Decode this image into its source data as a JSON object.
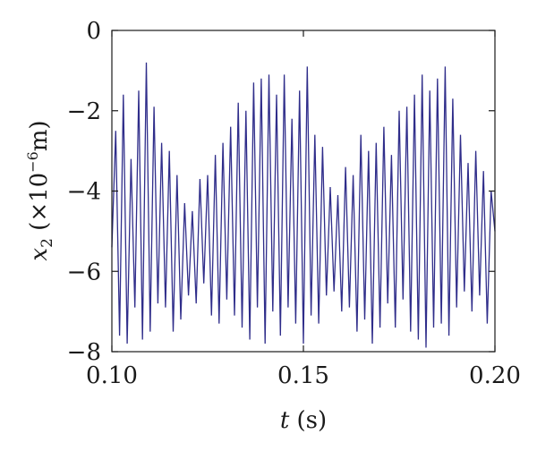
{
  "chart_data": {
    "type": "line",
    "title": "",
    "xlabel": {
      "var": "t",
      "unit": "(s)"
    },
    "ylabel": {
      "var": "x",
      "sub": "2",
      "pre": "(×10",
      "exp": "−6",
      "unit": "m)"
    },
    "xlim": [
      0.1,
      0.2
    ],
    "ylim": [
      -8,
      0
    ],
    "xticks": [
      0.1,
      0.15,
      0.2
    ],
    "xtick_labels": [
      "0.10",
      "0.15",
      "0.20"
    ],
    "yticks": [
      0,
      -2,
      -4,
      -6,
      -8
    ],
    "ytick_labels": [
      "0",
      "−2",
      "−4",
      "−6",
      "−8"
    ],
    "grid": false,
    "legend": "none",
    "series": [
      {
        "color": "#2f2d8a",
        "x": [
          0.1,
          0.101,
          0.102,
          0.103,
          0.104,
          0.105,
          0.106,
          0.107,
          0.108,
          0.109,
          0.11,
          0.111,
          0.112,
          0.113,
          0.114,
          0.115,
          0.116,
          0.117,
          0.118,
          0.119,
          0.12,
          0.121,
          0.122,
          0.123,
          0.124,
          0.125,
          0.126,
          0.127,
          0.128,
          0.129,
          0.13,
          0.131,
          0.132,
          0.133,
          0.134,
          0.135,
          0.136,
          0.137,
          0.138,
          0.139,
          0.14,
          0.141,
          0.142,
          0.143,
          0.144,
          0.145,
          0.146,
          0.147,
          0.148,
          0.149,
          0.15,
          0.151,
          0.152,
          0.153,
          0.154,
          0.155,
          0.156,
          0.157,
          0.158,
          0.159,
          0.16,
          0.161,
          0.162,
          0.163,
          0.164,
          0.165,
          0.166,
          0.167,
          0.168,
          0.169,
          0.17,
          0.171,
          0.172,
          0.173,
          0.174,
          0.175,
          0.176,
          0.177,
          0.178,
          0.179,
          0.18,
          0.181,
          0.182,
          0.183,
          0.184,
          0.185,
          0.186,
          0.187,
          0.188,
          0.189,
          0.19,
          0.191,
          0.192,
          0.193,
          0.194,
          0.195,
          0.196,
          0.197,
          0.198,
          0.199,
          0.2
        ],
        "y": [
          -5.4,
          -2.5,
          -7.6,
          -1.6,
          -7.8,
          -3.2,
          -6.9,
          -1.5,
          -7.7,
          -0.8,
          -7.5,
          -1.9,
          -6.8,
          -2.8,
          -6.9,
          -3.0,
          -7.5,
          -3.6,
          -7.2,
          -4.3,
          -6.6,
          -4.5,
          -6.8,
          -3.7,
          -6.3,
          -3.6,
          -7.1,
          -3.1,
          -7.3,
          -2.8,
          -6.7,
          -2.4,
          -7.1,
          -1.8,
          -7.4,
          -2.0,
          -7.7,
          -1.3,
          -6.9,
          -1.2,
          -7.8,
          -1.1,
          -7.0,
          -1.6,
          -7.6,
          -1.1,
          -6.9,
          -2.2,
          -7.3,
          -1.5,
          -7.8,
          -0.9,
          -7.1,
          -2.6,
          -7.3,
          -2.9,
          -6.6,
          -3.9,
          -6.5,
          -4.1,
          -7.0,
          -3.4,
          -6.9,
          -3.6,
          -7.5,
          -2.6,
          -7.2,
          -3.0,
          -7.8,
          -2.8,
          -7.4,
          -2.4,
          -6.8,
          -3.1,
          -7.4,
          -2.0,
          -6.7,
          -1.9,
          -7.5,
          -1.6,
          -7.7,
          -1.1,
          -7.9,
          -1.5,
          -7.4,
          -1.2,
          -7.3,
          -0.9,
          -7.6,
          -1.7,
          -6.9,
          -2.6,
          -6.5,
          -3.3,
          -7.0,
          -3.0,
          -6.6,
          -3.5,
          -7.3,
          -4.0,
          -5.0
        ]
      }
    ]
  }
}
